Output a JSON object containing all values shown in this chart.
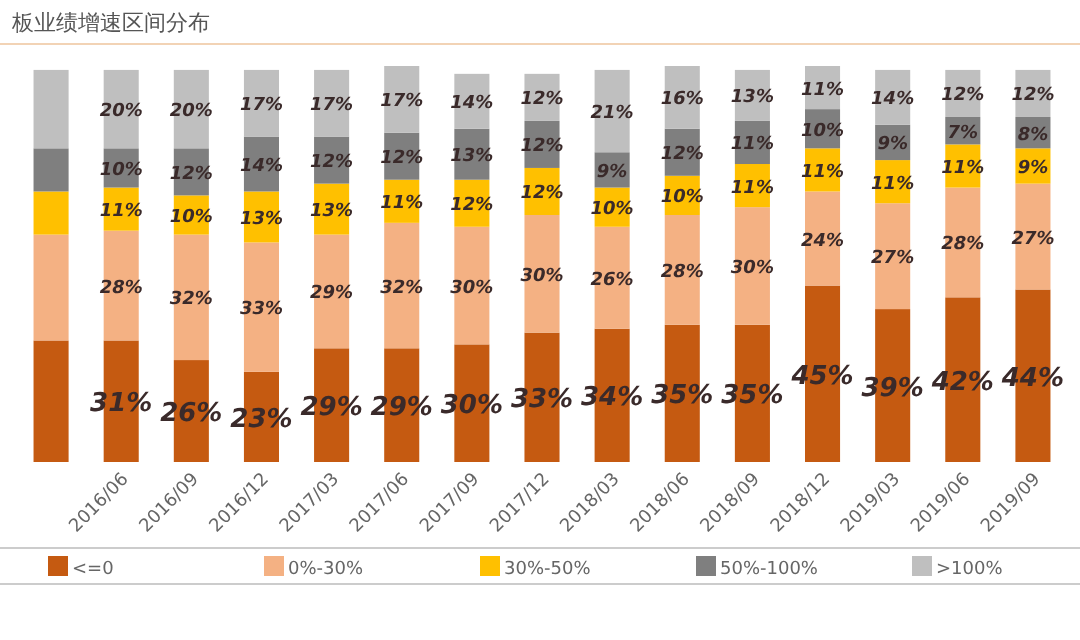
{
  "chart_data": {
    "type": "bar",
    "title": "板业绩增速区间分布",
    "stacked": true,
    "legend": "bottom",
    "categories": [
      null,
      "2016/06",
      "2016/09",
      "2016/12",
      "2017/03",
      "2017/06",
      "2017/09",
      "2017/12",
      "2018/03",
      "2018/06",
      "2018/09",
      "2018/12",
      "2019/03",
      "2019/06",
      "2019/09"
    ],
    "series": [
      {
        "name": "<=0",
        "color": "#c55a11",
        "values": [
          31,
          31,
          26,
          23,
          29,
          29,
          30,
          33,
          34,
          35,
          35,
          45,
          39,
          42,
          44
        ],
        "value_labels": [
          null,
          "31%",
          "26%",
          "23%",
          "29%",
          "29%",
          "30%",
          "33%",
          "34%",
          "35%",
          "35%",
          "45%",
          "39%",
          "42%",
          "44%"
        ]
      },
      {
        "name": "0%-30%",
        "color": "#f4b183",
        "values": [
          27,
          28,
          32,
          33,
          29,
          32,
          30,
          30,
          26,
          28,
          30,
          24,
          27,
          28,
          27
        ],
        "value_labels": [
          null,
          "28%",
          "32%",
          "33%",
          "29%",
          "32%",
          "30%",
          "30%",
          "26%",
          "28%",
          "30%",
          "24%",
          "27%",
          "28%",
          "27%"
        ]
      },
      {
        "name": "30%-50%",
        "color": "#ffc000",
        "values": [
          11,
          11,
          10,
          13,
          13,
          11,
          12,
          12,
          10,
          10,
          11,
          11,
          11,
          11,
          9
        ],
        "value_labels": [
          null,
          "11%",
          "10%",
          "13%",
          "13%",
          "11%",
          "12%",
          "12%",
          "10%",
          "10%",
          "11%",
          "11%",
          "11%",
          "11%",
          "9%"
        ]
      },
      {
        "name": "50%-100%",
        "color": "#7f7f7f",
        "values": [
          11,
          10,
          12,
          14,
          12,
          12,
          13,
          12,
          9,
          12,
          11,
          10,
          9,
          7,
          8
        ],
        "value_labels": [
          null,
          "10%",
          "12%",
          "14%",
          "12%",
          "12%",
          "13%",
          "12%",
          "9%",
          "12%",
          "11%",
          "10%",
          "9%",
          "7%",
          "8%"
        ]
      },
      {
        "name": ">100%",
        "color": "#bfbfbf",
        "values": [
          20,
          20,
          20,
          17,
          17,
          17,
          14,
          12,
          21,
          16,
          13,
          11,
          14,
          12,
          12
        ],
        "value_labels": [
          null,
          "20%",
          "20%",
          "17%",
          "17%",
          "17%",
          "14%",
          "12%",
          "21%",
          "16%",
          "13%",
          "11%",
          "14%",
          "12%",
          "12%"
        ]
      }
    ]
  }
}
